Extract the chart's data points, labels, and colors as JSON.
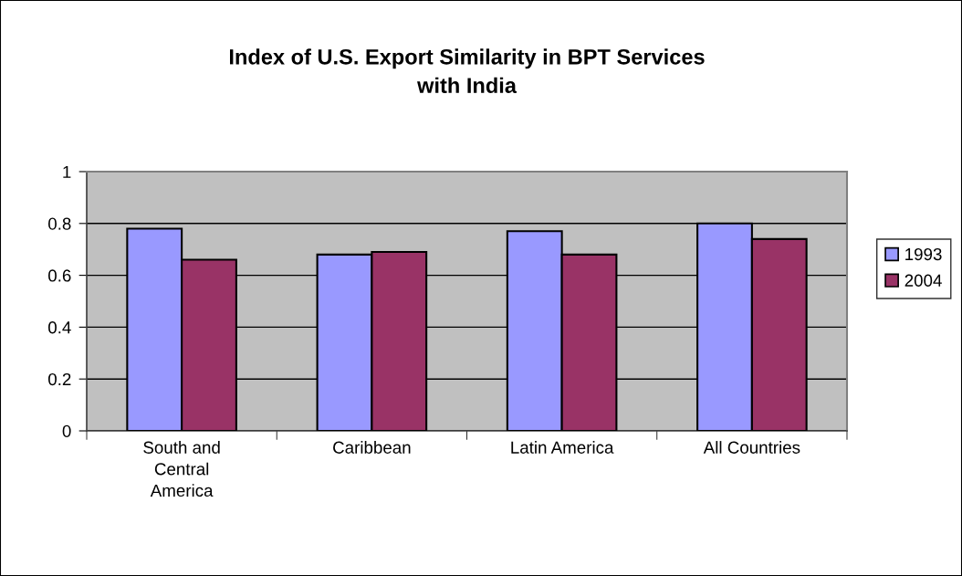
{
  "chart_data": {
    "type": "bar",
    "title": "Index of U.S. Export Similarity in BPT Services\nwith India",
    "categories": [
      "South and\nCentral\nAmerica",
      "Caribbean",
      "Latin America",
      "All Countries"
    ],
    "series": [
      {
        "name": "1993",
        "color": "#9999ff",
        "values": [
          0.78,
          0.68,
          0.77,
          0.8
        ]
      },
      {
        "name": "2004",
        "color": "#993366",
        "values": [
          0.66,
          0.69,
          0.68,
          0.74
        ]
      }
    ],
    "ylim": [
      0,
      1
    ],
    "yticks": [
      0,
      0.2,
      0.4,
      0.6,
      0.8,
      1
    ],
    "grid": "y",
    "legend": "right"
  }
}
